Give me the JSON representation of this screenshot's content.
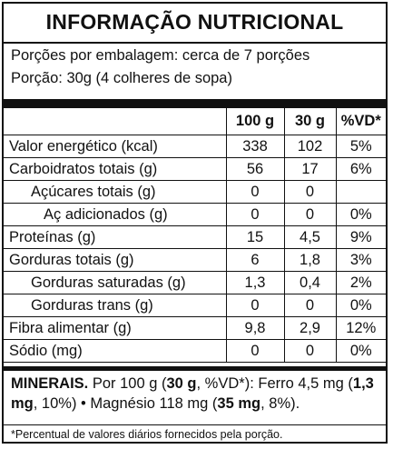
{
  "title": "INFORMAÇÃO NUTRICIONAL",
  "portions_per_package": "Porções por embalagem: cerca de 7 porções",
  "portion": "Porção: 30g (4 colheres de sopa)",
  "columns": [
    "100 g",
    "30 g",
    "%VD*"
  ],
  "rows": [
    {
      "name": "Valor energético (kcal)",
      "indent": 0,
      "v100": "338",
      "v30": "102",
      "vd": "5%"
    },
    {
      "name": "Carboidratos totais (g)",
      "indent": 0,
      "v100": "56",
      "v30": "17",
      "vd": "6%"
    },
    {
      "name": "Açúcares totais (g)",
      "indent": 1,
      "v100": "0",
      "v30": "0",
      "vd": ""
    },
    {
      "name": "Aç adicionados (g)",
      "indent": 2,
      "v100": "0",
      "v30": "0",
      "vd": "0%"
    },
    {
      "name": "Proteínas (g)",
      "indent": 0,
      "v100": "15",
      "v30": "4,5",
      "vd": "9%"
    },
    {
      "name": "Gorduras totais (g)",
      "indent": 0,
      "v100": "6",
      "v30": "1,8",
      "vd": "3%"
    },
    {
      "name": "Gorduras saturadas (g)",
      "indent": 1,
      "v100": "1,3",
      "v30": "0,4",
      "vd": "2%"
    },
    {
      "name": "Gorduras trans (g)",
      "indent": 1,
      "v100": "0",
      "v30": "0",
      "vd": "0%"
    },
    {
      "name": "Fibra alimentar (g)",
      "indent": 0,
      "v100": "9,8",
      "v30": "2,9",
      "vd": "12%"
    },
    {
      "name": "Sódio (mg)",
      "indent": 0,
      "v100": "0",
      "v30": "0",
      "vd": "0%"
    }
  ],
  "minerals": {
    "label": "MINERAIS.",
    "t1": " Por 100 g (",
    "b1": "30 g",
    "t2": ", %VD*): Ferro 4,5 mg (",
    "b2": "1,3 mg",
    "t3": ", 10%) • Magnésio 118 mg (",
    "b3": "35 mg",
    "t4": ", 8%)."
  },
  "footnote": "*Percentual de valores diários fornecidos pela porção."
}
